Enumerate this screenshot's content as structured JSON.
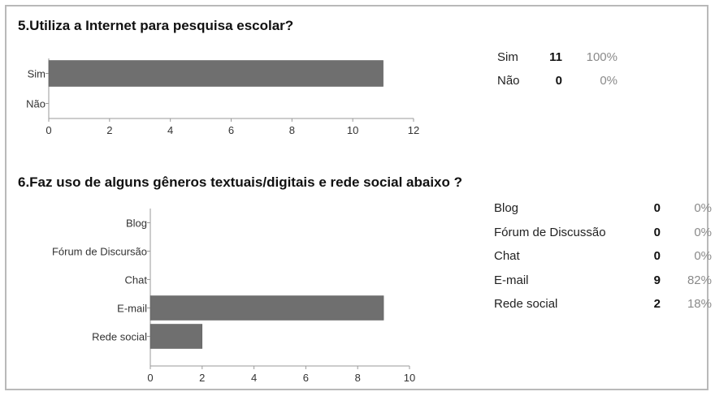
{
  "chart_data": [
    {
      "type": "bar",
      "orientation": "horizontal",
      "title": "5.Utiliza a Internet para pesquisa escolar?",
      "categories": [
        "Sim",
        "Não"
      ],
      "values": [
        11,
        0
      ],
      "xlim": [
        0,
        12
      ],
      "xticks": [
        0,
        2,
        4,
        6,
        8,
        10,
        12
      ],
      "bar_color": "#6f6f6f",
      "summary": [
        {
          "label": "Sim",
          "count": "11",
          "percent": "100%"
        },
        {
          "label": "Não",
          "count": "0",
          "percent": "0%"
        }
      ]
    },
    {
      "type": "bar",
      "orientation": "horizontal",
      "title": "6.Faz uso de alguns gêneros textuais/digitais e rede social abaixo ?",
      "categories": [
        "Blog",
        "Fórum de Discursão",
        "Chat",
        "E-mail",
        "Rede social"
      ],
      "values": [
        0,
        0,
        0,
        9,
        2
      ],
      "xlim": [
        0,
        10
      ],
      "xticks": [
        0,
        2,
        4,
        6,
        8,
        10
      ],
      "bar_color": "#6f6f6f",
      "summary": [
        {
          "label": "Blog",
          "count": "0",
          "percent": "0%"
        },
        {
          "label": "Fórum de Discussão",
          "count": "0",
          "percent": "0%"
        },
        {
          "label": "Chat",
          "count": "0",
          "percent": "0%"
        },
        {
          "label": "E-mail",
          "count": "9",
          "percent": "82%"
        },
        {
          "label": "Rede social",
          "count": "2",
          "percent": "18%"
        }
      ]
    }
  ]
}
